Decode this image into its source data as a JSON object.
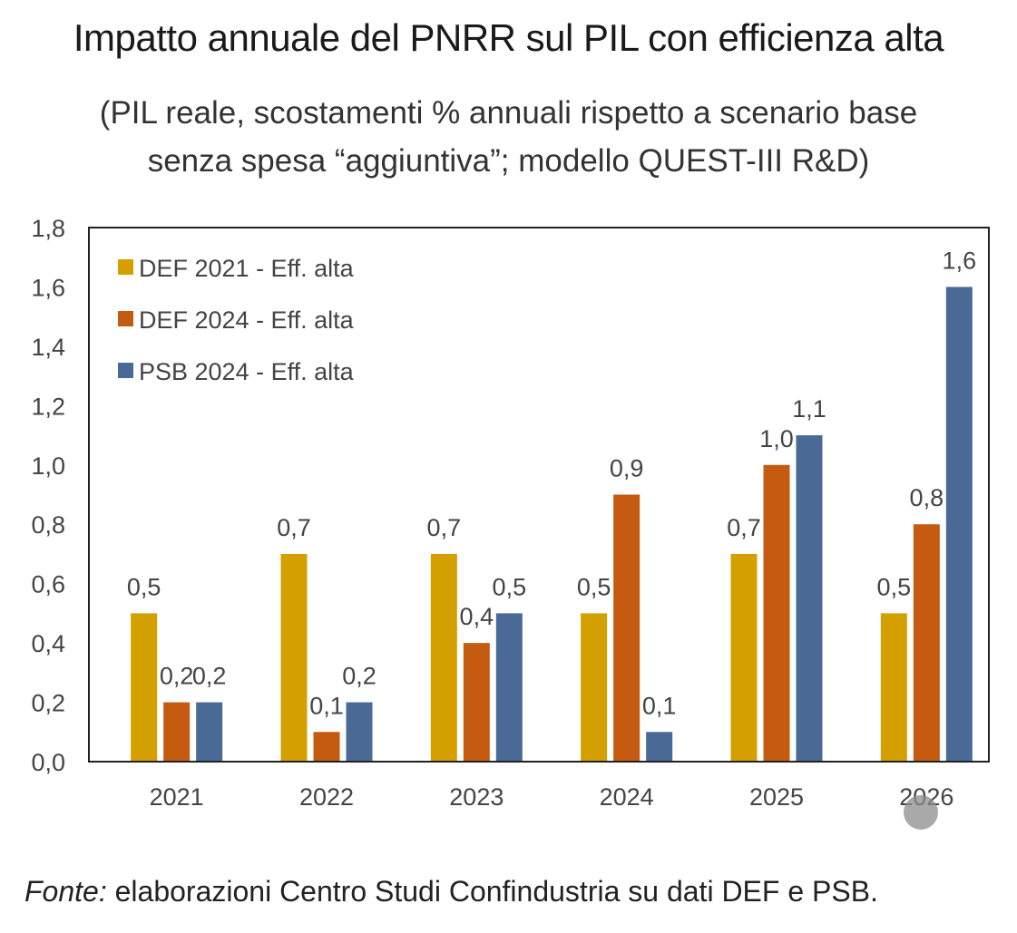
{
  "title": "Impatto annuale del PNRR sul PIL con efficienza alta",
  "subtitle_line1": "(PIL reale, scostamenti % annuali rispetto a scenario base",
  "subtitle_line2": "senza spesa “aggiuntiva”; modello QUEST-III R&D)",
  "source": {
    "label": "Fonte:",
    "text": " elaborazioni Centro Studi Confindustria su dati DEF e PSB."
  },
  "chart_data": {
    "type": "bar",
    "categories": [
      "2021",
      "2022",
      "2023",
      "2024",
      "2025",
      "2026"
    ],
    "series": [
      {
        "name": "DEF 2021 - Eff. alta",
        "color": "#D4A000",
        "values": [
          0.5,
          0.7,
          0.7,
          0.5,
          0.7,
          0.5
        ],
        "labels": [
          "0,5",
          "0,7",
          "0,7",
          "0,5",
          "0,7",
          "0,5"
        ]
      },
      {
        "name": "DEF 2024 - Eff. alta",
        "color": "#C55A11",
        "values": [
          0.2,
          0.1,
          0.4,
          0.9,
          1.0,
          0.8
        ],
        "labels": [
          "0,2",
          "0,1",
          "0,4",
          "0,9",
          "1,0",
          "0,8"
        ]
      },
      {
        "name": "PSB 2024 - Eff. alta",
        "color": "#4A6A96",
        "values": [
          0.2,
          0.2,
          0.5,
          0.1,
          1.1,
          1.6
        ],
        "labels": [
          "0,2",
          "0,2",
          "0,5",
          "0,1",
          "1,1",
          "1,6"
        ]
      }
    ],
    "ylim": [
      0,
      1.8
    ],
    "yticks": [
      "0,0",
      "0,2",
      "0,4",
      "0,6",
      "0,8",
      "1,0",
      "1,2",
      "1,4",
      "1,6",
      "1,8"
    ],
    "grid": false,
    "legend": "top-left",
    "xlabel": "",
    "ylabel": ""
  }
}
